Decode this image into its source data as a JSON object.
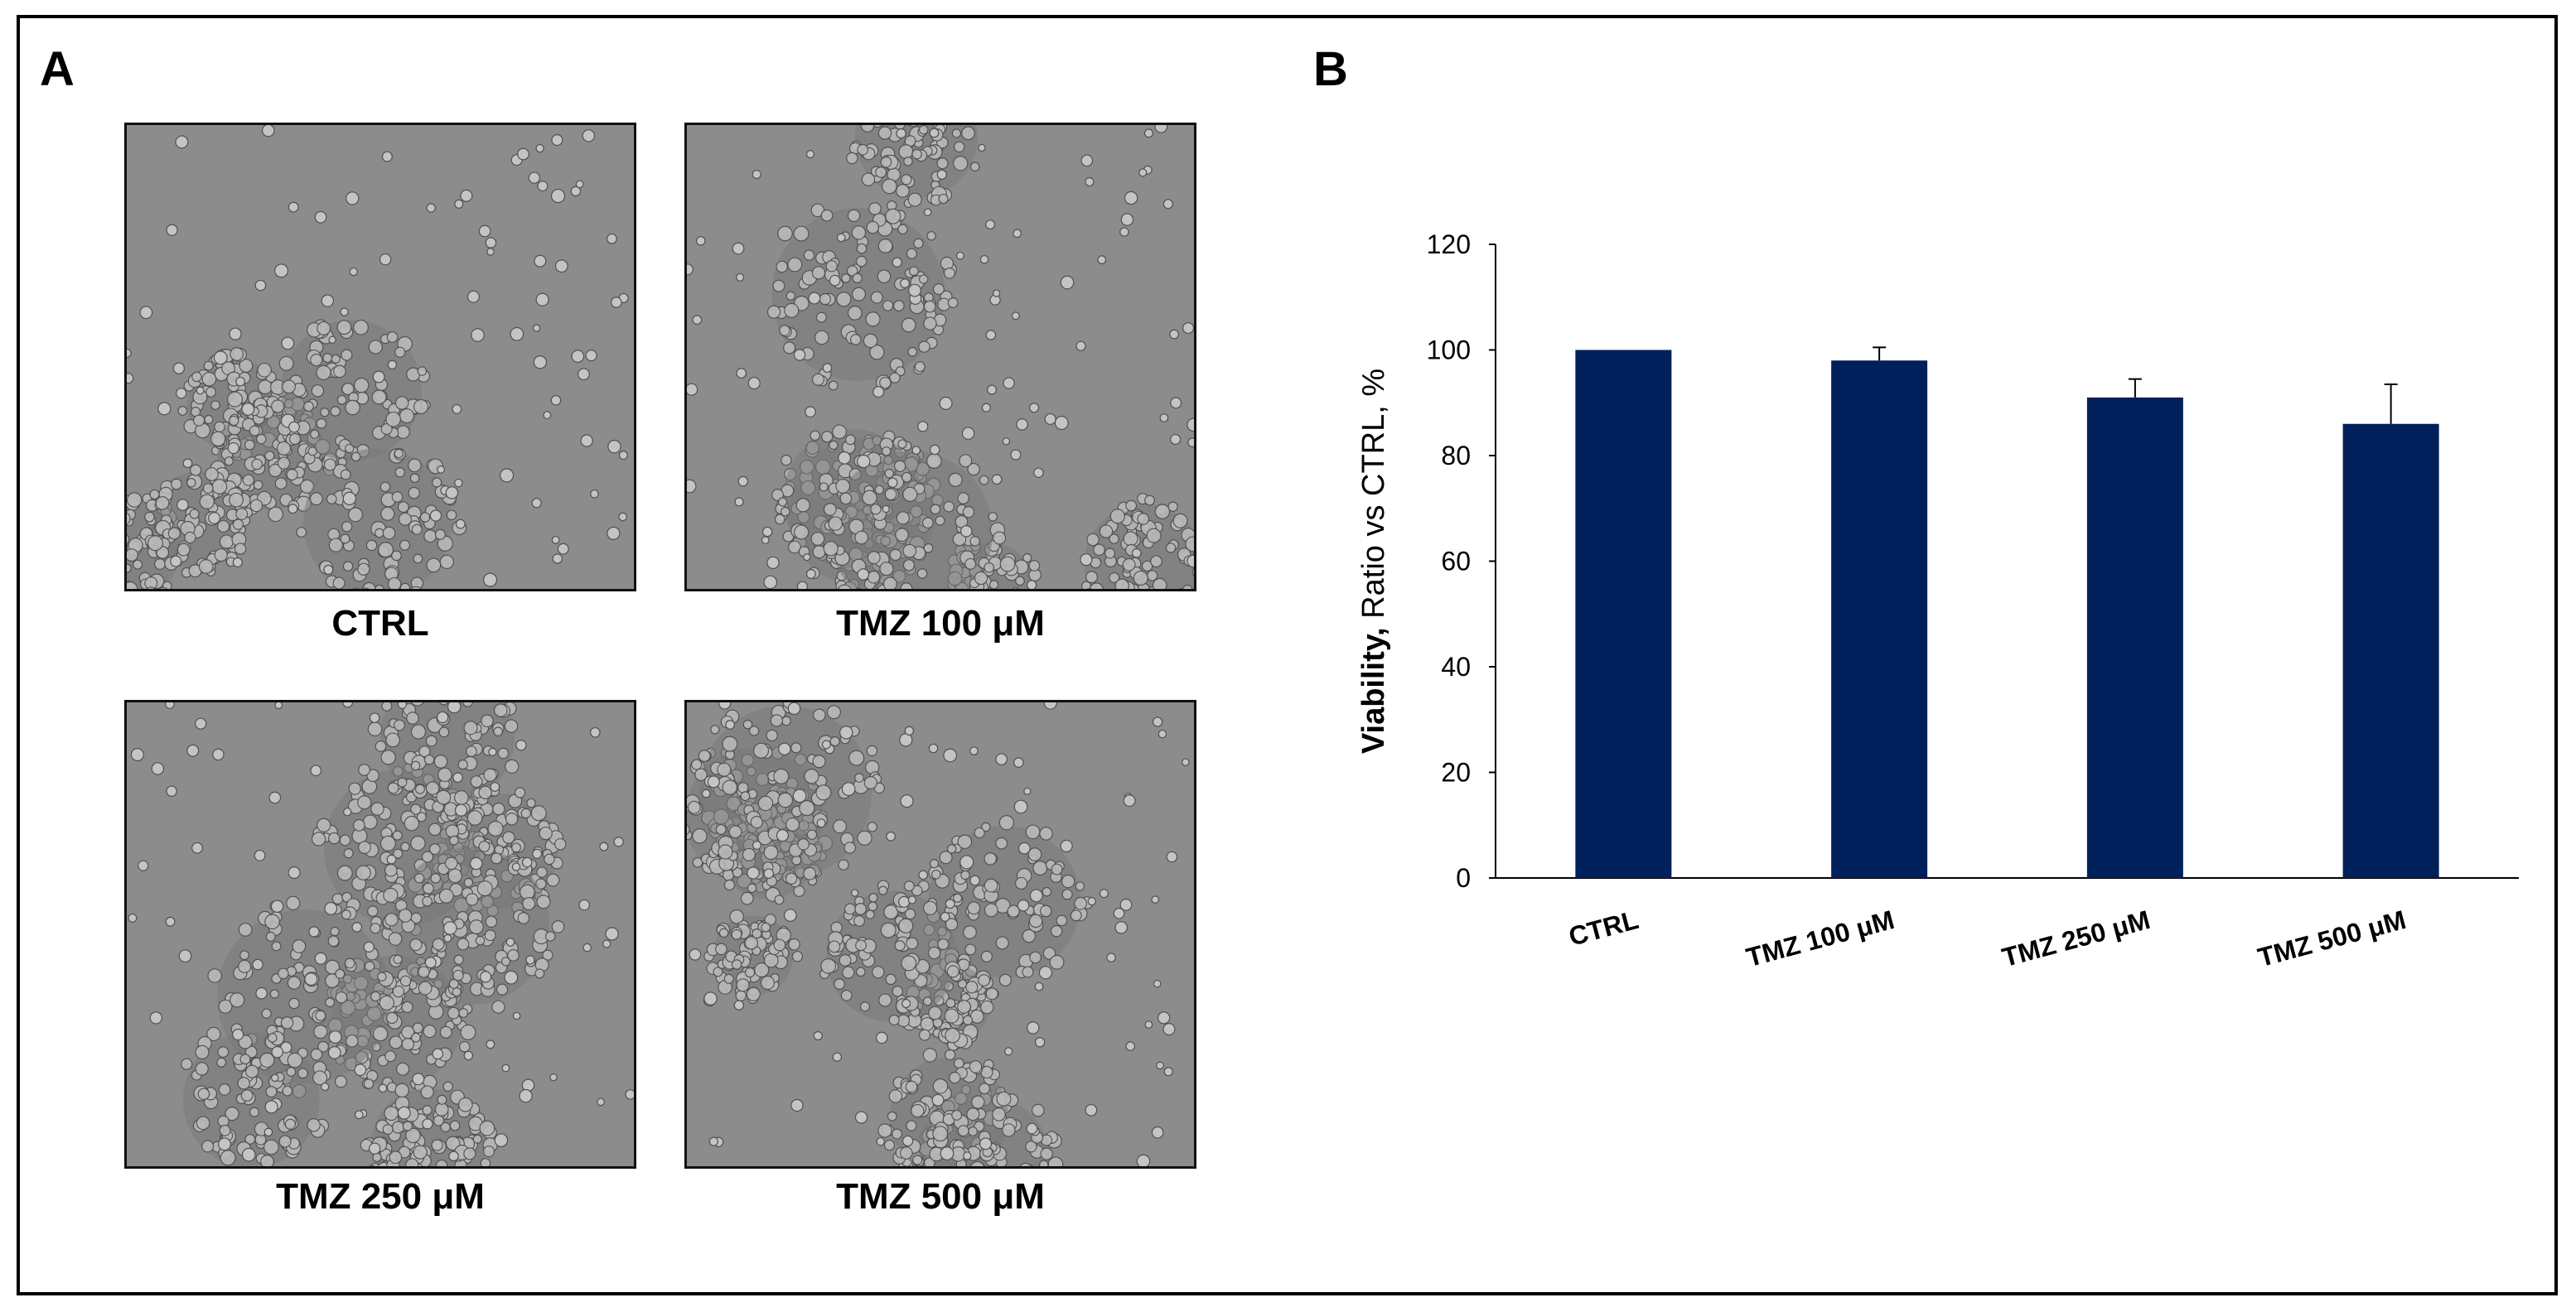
{
  "figure": {
    "panel_a_letter": "A",
    "panel_b_letter": "B"
  },
  "micrographs": [
    {
      "label": "CTRL"
    },
    {
      "label": "TMZ 100 μM"
    },
    {
      "label": "TMZ 250 μM"
    },
    {
      "label": "TMZ 500 μM"
    }
  ],
  "chart_data": {
    "type": "bar",
    "categories": [
      "CTRL",
      "TMZ 100 μM",
      "TMZ 250 μM",
      "TMZ 500 μM"
    ],
    "values": [
      100,
      98,
      91,
      86
    ],
    "errors": [
      0,
      2.5,
      3.5,
      7.5
    ],
    "ylabel_bold": "Viability,",
    "ylabel_rest": " Ratio vs CTRL, %",
    "ylim": [
      0,
      120
    ],
    "yticks": [
      0,
      20,
      40,
      60,
      80,
      100,
      120
    ],
    "bar_color": "#00205b",
    "grid": false
  }
}
